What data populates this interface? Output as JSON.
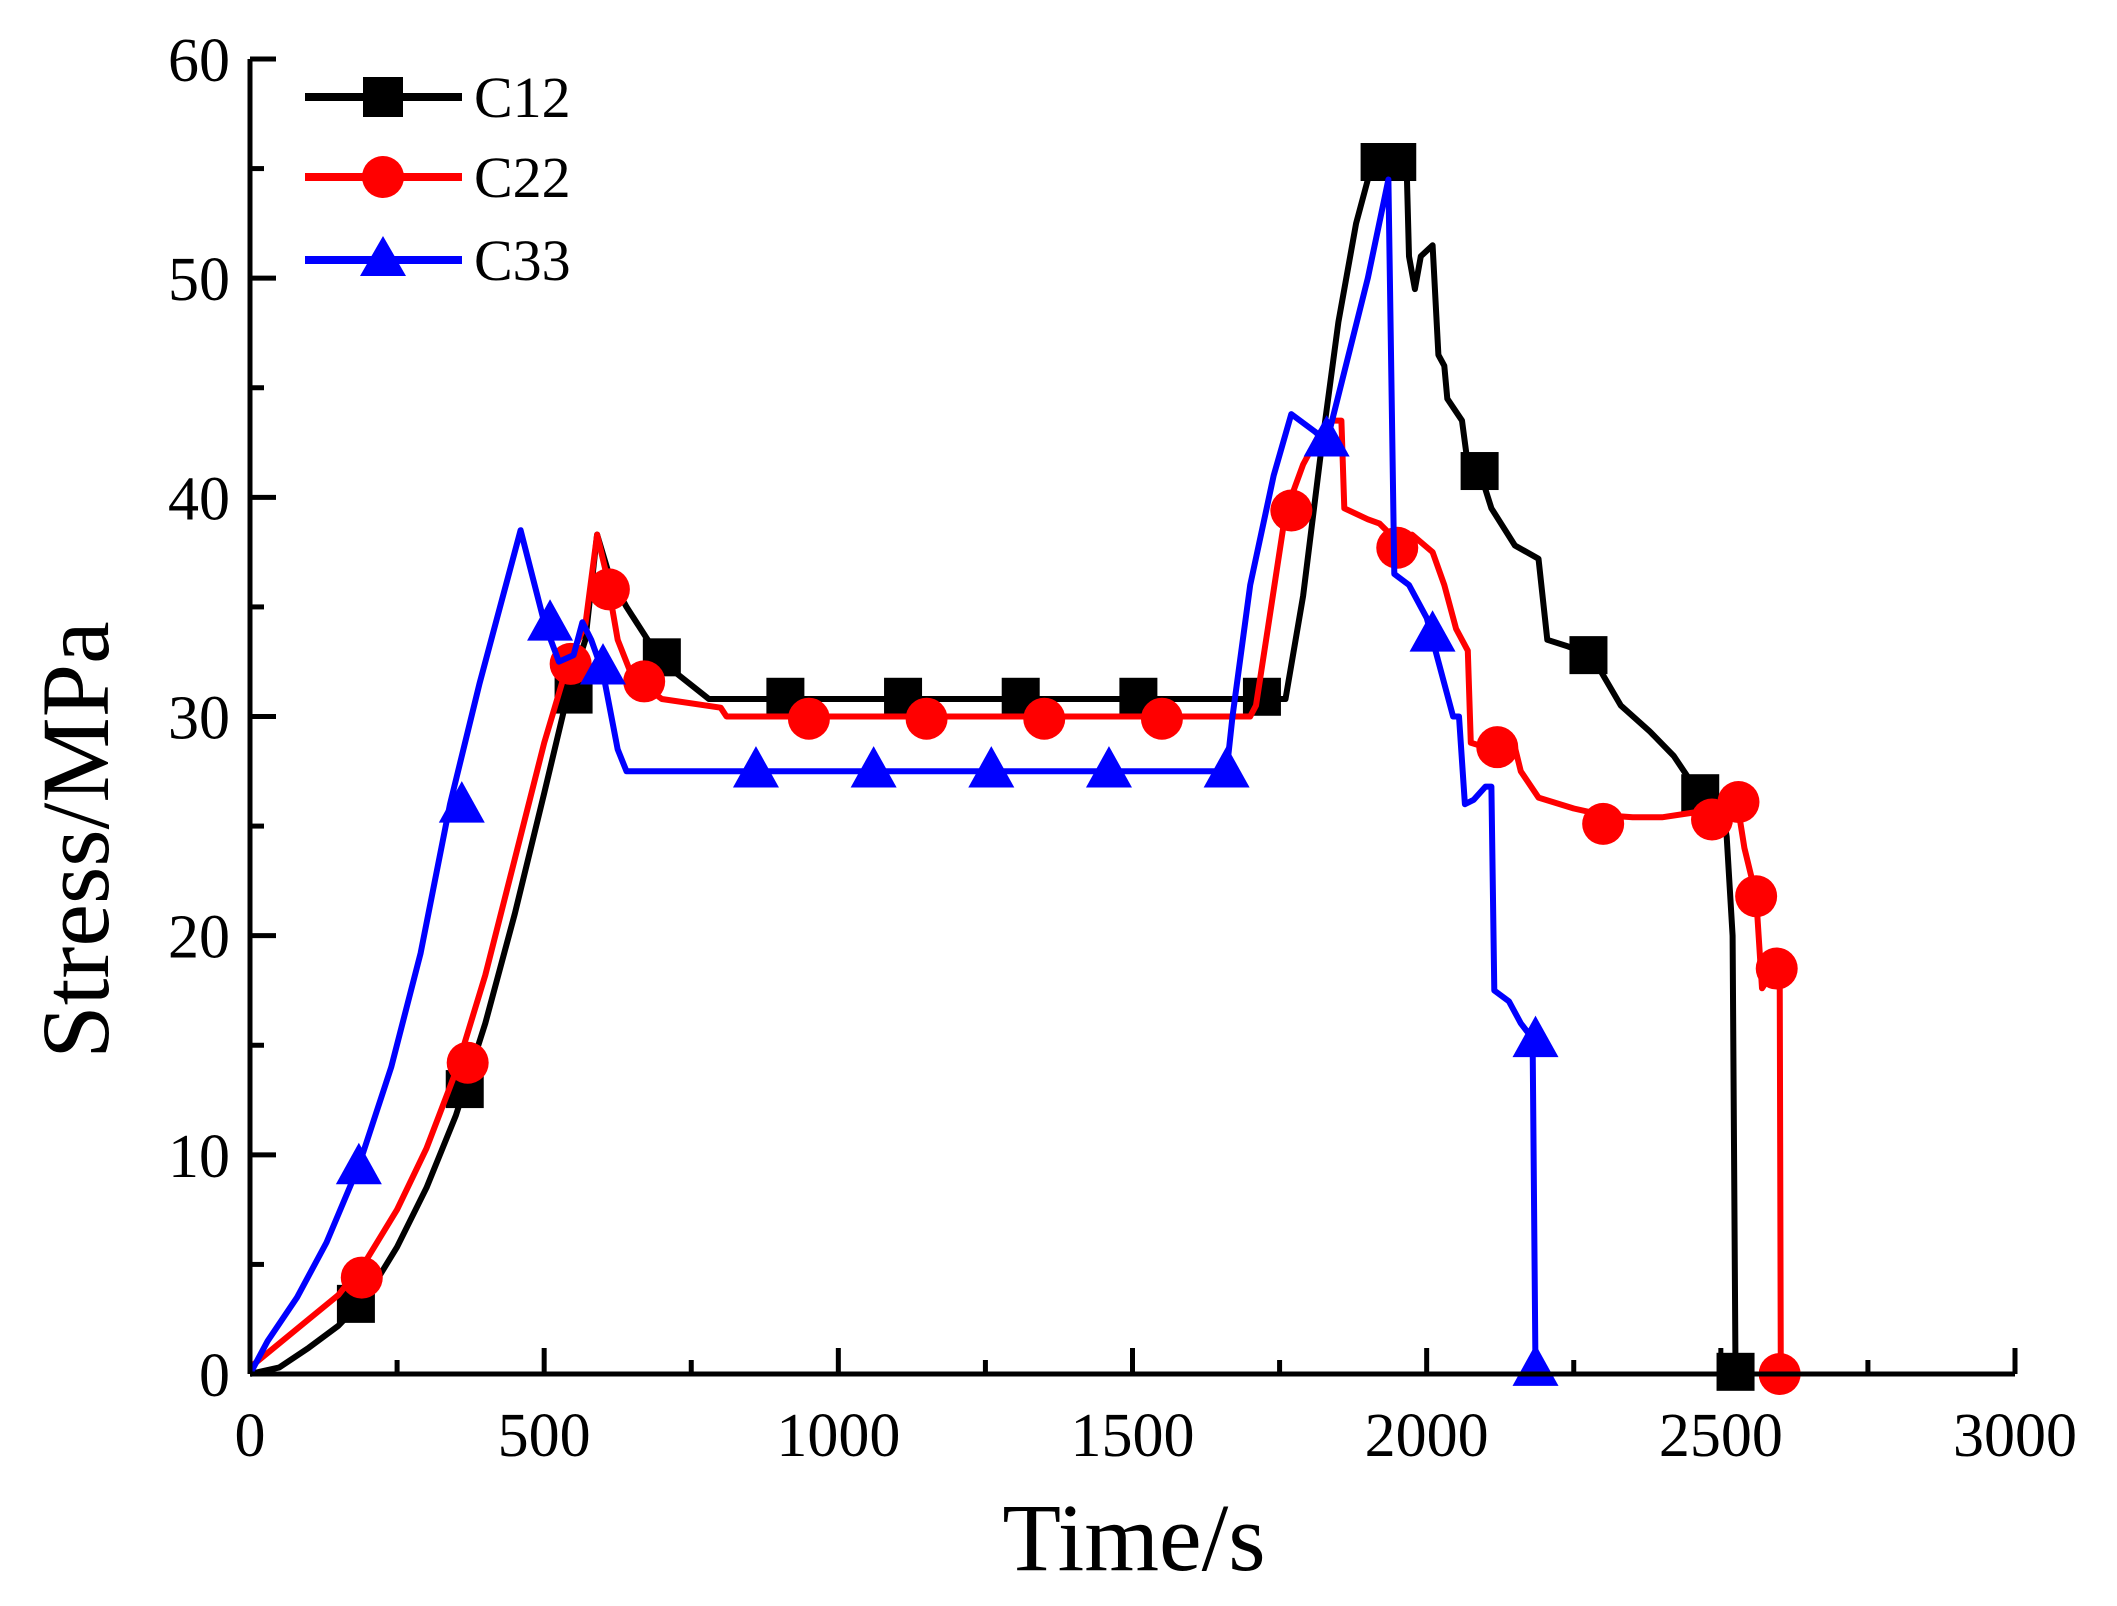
{
  "chart_data": {
    "type": "line",
    "title": "",
    "xlabel": "Time/s",
    "ylabel": "Stress/MPa",
    "xlim": [
      0,
      3000
    ],
    "ylim": [
      0,
      60
    ],
    "xticks": [
      0,
      500,
      1000,
      1500,
      2000,
      2500,
      3000
    ],
    "yticks": [
      0,
      10,
      20,
      30,
      40,
      50,
      60
    ],
    "xtick_labels": [
      "0",
      "500",
      "1000",
      "1500",
      "2000",
      "2500",
      "3000"
    ],
    "ytick_labels": [
      "0",
      "10",
      "20",
      "30",
      "40",
      "50",
      "60"
    ],
    "grid": false,
    "legend_position": "top-left",
    "series": [
      {
        "name": "C12",
        "color": "#000000",
        "marker": "square",
        "line": [
          [
            0,
            0
          ],
          [
            50,
            0.3
          ],
          [
            100,
            1.2
          ],
          [
            150,
            2.2
          ],
          [
            200,
            3.6
          ],
          [
            250,
            5.8
          ],
          [
            300,
            8.5
          ],
          [
            350,
            11.8
          ],
          [
            400,
            16
          ],
          [
            450,
            21
          ],
          [
            500,
            26.5
          ],
          [
            540,
            31
          ],
          [
            570,
            33.5
          ],
          [
            590,
            38.3
          ],
          [
            610,
            36.5
          ],
          [
            640,
            35
          ],
          [
            700,
            32.5
          ],
          [
            780,
            30.8
          ],
          [
            900,
            30.8
          ],
          [
            1200,
            30.8
          ],
          [
            1500,
            30.8
          ],
          [
            1700,
            30.8
          ],
          [
            1760,
            30.8
          ],
          [
            1790,
            35.5
          ],
          [
            1820,
            42
          ],
          [
            1850,
            48
          ],
          [
            1880,
            52.5
          ],
          [
            1905,
            55
          ],
          [
            1925,
            55.5
          ],
          [
            1950,
            55.6
          ],
          [
            1965,
            56
          ],
          [
            1970,
            51
          ],
          [
            1980,
            49.5
          ],
          [
            1990,
            51
          ],
          [
            2010,
            51.5
          ],
          [
            2020,
            46.5
          ],
          [
            2030,
            46
          ],
          [
            2035,
            44.5
          ],
          [
            2060,
            43.5
          ],
          [
            2070,
            41.5
          ],
          [
            2090,
            41.2
          ],
          [
            2110,
            39.5
          ],
          [
            2150,
            37.8
          ],
          [
            2190,
            37.2
          ],
          [
            2205,
            33.5
          ],
          [
            2240,
            33.2
          ],
          [
            2280,
            32.8
          ],
          [
            2330,
            30.5
          ],
          [
            2380,
            29.3
          ],
          [
            2420,
            28.2
          ],
          [
            2450,
            27
          ],
          [
            2470,
            26.5
          ],
          [
            2500,
            26.3
          ],
          [
            2510,
            24.5
          ],
          [
            2520,
            20
          ],
          [
            2525,
            0.2
          ],
          [
            2530,
            0.2
          ]
        ],
        "markers": [
          [
            180,
            3.2
          ],
          [
            365,
            13
          ],
          [
            550,
            31
          ],
          [
            700,
            32.7
          ],
          [
            910,
            30.9
          ],
          [
            1110,
            30.9
          ],
          [
            1310,
            30.9
          ],
          [
            1510,
            30.9
          ],
          [
            1720,
            30.9
          ],
          [
            1920,
            55.3
          ],
          [
            1950,
            55.3
          ],
          [
            2090,
            41.2
          ],
          [
            2275,
            32.8
          ],
          [
            2465,
            26.5
          ],
          [
            2525,
            0.1
          ]
        ]
      },
      {
        "name": "C22",
        "color": "#ff0000",
        "marker": "circle",
        "line": [
          [
            0,
            0.3
          ],
          [
            50,
            1.4
          ],
          [
            100,
            2.5
          ],
          [
            150,
            3.6
          ],
          [
            200,
            5.3
          ],
          [
            250,
            7.5
          ],
          [
            300,
            10.3
          ],
          [
            350,
            13.8
          ],
          [
            400,
            18.2
          ],
          [
            450,
            23.5
          ],
          [
            500,
            28.8
          ],
          [
            540,
            32.4
          ],
          [
            570,
            34.2
          ],
          [
            590,
            38.3
          ],
          [
            605,
            36.6
          ],
          [
            625,
            33.5
          ],
          [
            650,
            31.8
          ],
          [
            700,
            30.8
          ],
          [
            800,
            30.4
          ],
          [
            810,
            30
          ],
          [
            900,
            30
          ],
          [
            1200,
            30
          ],
          [
            1500,
            30
          ],
          [
            1700,
            30
          ],
          [
            1710,
            30.5
          ],
          [
            1730,
            34
          ],
          [
            1760,
            39.3
          ],
          [
            1790,
            41.5
          ],
          [
            1820,
            43
          ],
          [
            1840,
            43.5
          ],
          [
            1855,
            43.5
          ],
          [
            1860,
            39.5
          ],
          [
            1900,
            39
          ],
          [
            1920,
            38.8
          ],
          [
            1950,
            38
          ],
          [
            1975,
            38.3
          ],
          [
            2010,
            37.5
          ],
          [
            2030,
            36
          ],
          [
            2050,
            34
          ],
          [
            2070,
            33
          ],
          [
            2075,
            28.8
          ],
          [
            2100,
            28.6
          ],
          [
            2150,
            28.6
          ],
          [
            2160,
            27.5
          ],
          [
            2190,
            26.3
          ],
          [
            2250,
            25.8
          ],
          [
            2300,
            25.5
          ],
          [
            2350,
            25.4
          ],
          [
            2400,
            25.4
          ],
          [
            2450,
            25.6
          ],
          [
            2500,
            25.8
          ],
          [
            2530,
            25.7
          ],
          [
            2540,
            24
          ],
          [
            2560,
            21.8
          ],
          [
            2570,
            17.6
          ],
          [
            2590,
            18.4
          ],
          [
            2600,
            18.4
          ],
          [
            2602,
            0
          ]
        ],
        "markers": [
          [
            190,
            4.4
          ],
          [
            370,
            14.2
          ],
          [
            545,
            32.4
          ],
          [
            610,
            35.8
          ],
          [
            670,
            31.6
          ],
          [
            950,
            29.9
          ],
          [
            1150,
            29.9
          ],
          [
            1350,
            29.9
          ],
          [
            1550,
            29.9
          ],
          [
            1770,
            39.4
          ],
          [
            1950,
            37.7
          ],
          [
            2120,
            28.6
          ],
          [
            2300,
            25.1
          ],
          [
            2485,
            25.3
          ],
          [
            2530,
            26.1
          ],
          [
            2560,
            21.8
          ],
          [
            2595,
            18.5
          ],
          [
            2600,
            0
          ]
        ]
      },
      {
        "name": "C33",
        "color": "#0000ff",
        "marker": "triangle",
        "line": [
          [
            0,
            0
          ],
          [
            30,
            1.5
          ],
          [
            80,
            3.5
          ],
          [
            130,
            6
          ],
          [
            185,
            9.5
          ],
          [
            240,
            14
          ],
          [
            290,
            19.2
          ],
          [
            340,
            26
          ],
          [
            390,
            31.5
          ],
          [
            420,
            34.5
          ],
          [
            460,
            38.5
          ],
          [
            500,
            34.3
          ],
          [
            525,
            32.5
          ],
          [
            550,
            32.8
          ],
          [
            565,
            34.3
          ],
          [
            580,
            33.5
          ],
          [
            600,
            32
          ],
          [
            625,
            28.5
          ],
          [
            640,
            27.5
          ],
          [
            700,
            27.5
          ],
          [
            900,
            27.5
          ],
          [
            1200,
            27.5
          ],
          [
            1500,
            27.5
          ],
          [
            1660,
            27.5
          ],
          [
            1670,
            30
          ],
          [
            1700,
            36
          ],
          [
            1740,
            41
          ],
          [
            1770,
            43.8
          ],
          [
            1810,
            43
          ],
          [
            1830,
            42.5
          ],
          [
            1900,
            50
          ],
          [
            1935,
            54.5
          ],
          [
            1945,
            36.5
          ],
          [
            1970,
            36
          ],
          [
            2000,
            34.5
          ],
          [
            2030,
            31.5
          ],
          [
            2045,
            30
          ],
          [
            2055,
            30
          ],
          [
            2065,
            26
          ],
          [
            2080,
            26.2
          ],
          [
            2100,
            26.8
          ],
          [
            2110,
            26.8
          ],
          [
            2115,
            17.5
          ],
          [
            2140,
            17
          ],
          [
            2160,
            16
          ],
          [
            2180,
            15.3
          ],
          [
            2185,
            0.2
          ]
        ],
        "markers": [
          [
            185,
            9.5
          ],
          [
            360,
            26
          ],
          [
            510,
            34.3
          ],
          [
            600,
            32.3
          ],
          [
            860,
            27.6
          ],
          [
            1060,
            27.6
          ],
          [
            1260,
            27.6
          ],
          [
            1460,
            27.6
          ],
          [
            1660,
            27.6
          ],
          [
            1830,
            42.7
          ],
          [
            2010,
            33.8
          ],
          [
            2185,
            15.3
          ],
          [
            2185,
            0.3
          ]
        ]
      }
    ]
  }
}
